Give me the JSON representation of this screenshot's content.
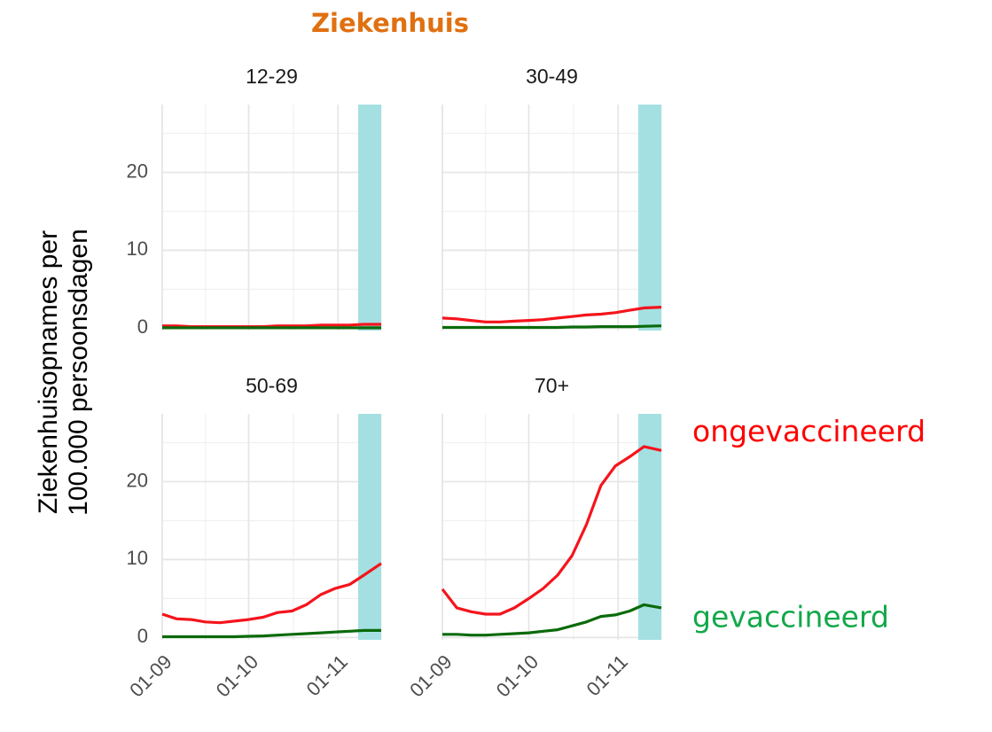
{
  "title": "Ziekenhuis",
  "y_label": [
    "Ziekenhuisopnames per",
    "100.000 persoonsdagen"
  ],
  "chart_data": [
    {
      "type": "line",
      "title": "12-29",
      "x": [
        "01-09",
        "06-09",
        "11-09",
        "16-09",
        "21-09",
        "26-09",
        "01-10",
        "06-10",
        "11-10",
        "16-10",
        "21-10",
        "26-10",
        "31-10",
        "05-11",
        "10-11",
        "16-11"
      ],
      "xlim": [
        "01-09",
        "16-11"
      ],
      "xticks": [
        "01-09",
        "01-10",
        "01-11"
      ],
      "ylim": [
        -0.3,
        28.7
      ],
      "yticks": [
        0,
        10,
        20
      ],
      "grid": true,
      "highlight": [
        "08-11",
        "16-11"
      ],
      "highlight_color": "#a4e0e2",
      "series": [
        {
          "color": "#f5141c",
          "values": [
            0.3,
            0.3,
            0.2,
            0.2,
            0.2,
            0.2,
            0.2,
            0.2,
            0.3,
            0.3,
            0.3,
            0.4,
            0.4,
            0.4,
            0.5,
            0.5
          ]
        },
        {
          "color": "#0b6a0b",
          "values": [
            0.05,
            0.05,
            0.05,
            0.05,
            0.05,
            0.05,
            0.05,
            0.05,
            0.05,
            0.05,
            0.05,
            0.05,
            0.05,
            0.05,
            0.05,
            0.05
          ]
        }
      ]
    },
    {
      "type": "line",
      "title": "30-49",
      "x": [
        "01-09",
        "06-09",
        "11-09",
        "16-09",
        "21-09",
        "26-09",
        "01-10",
        "06-10",
        "11-10",
        "16-10",
        "21-10",
        "26-10",
        "31-10",
        "05-11",
        "10-11",
        "16-11"
      ],
      "xlim": [
        "01-09",
        "16-11"
      ],
      "xticks": [
        "01-09",
        "01-10",
        "01-11"
      ],
      "ylim": [
        -0.3,
        28.7
      ],
      "yticks": [
        0,
        10,
        20
      ],
      "grid": true,
      "highlight": [
        "08-11",
        "16-11"
      ],
      "highlight_color": "#a4e0e2",
      "series": [
        {
          "color": "#f5141c",
          "values": [
            1.3,
            1.2,
            1.0,
            0.8,
            0.8,
            0.9,
            1.0,
            1.1,
            1.3,
            1.5,
            1.7,
            1.8,
            2.0,
            2.3,
            2.6,
            2.7
          ]
        },
        {
          "color": "#0b6a0b",
          "values": [
            0.1,
            0.1,
            0.1,
            0.1,
            0.1,
            0.1,
            0.1,
            0.1,
            0.1,
            0.15,
            0.15,
            0.2,
            0.2,
            0.2,
            0.25,
            0.3
          ]
        }
      ]
    },
    {
      "type": "line",
      "title": "50-69",
      "x": [
        "01-09",
        "06-09",
        "11-09",
        "16-09",
        "21-09",
        "26-09",
        "01-10",
        "06-10",
        "11-10",
        "16-10",
        "21-10",
        "26-10",
        "31-10",
        "05-11",
        "10-11",
        "16-11"
      ],
      "xlim": [
        "01-09",
        "16-11"
      ],
      "xticks": [
        "01-09",
        "01-10",
        "01-11"
      ],
      "ylim": [
        -0.3,
        28.7
      ],
      "yticks": [
        0,
        10,
        20
      ],
      "grid": true,
      "highlight": [
        "08-11",
        "16-11"
      ],
      "highlight_color": "#a4e0e2",
      "series": [
        {
          "color": "#f5141c",
          "values": [
            3.0,
            2.4,
            2.3,
            2.0,
            1.9,
            2.1,
            2.3,
            2.6,
            3.2,
            3.4,
            4.2,
            5.5,
            6.3,
            6.8,
            8.0,
            9.5
          ]
        },
        {
          "color": "#0b6a0b",
          "values": [
            0.1,
            0.1,
            0.1,
            0.1,
            0.1,
            0.1,
            0.15,
            0.2,
            0.3,
            0.4,
            0.5,
            0.6,
            0.7,
            0.8,
            0.9,
            0.9
          ]
        }
      ]
    },
    {
      "type": "line",
      "title": "70+",
      "x": [
        "01-09",
        "06-09",
        "11-09",
        "16-09",
        "21-09",
        "26-09",
        "01-10",
        "06-10",
        "11-10",
        "16-10",
        "21-10",
        "26-10",
        "31-10",
        "05-11",
        "10-11",
        "16-11"
      ],
      "xlim": [
        "01-09",
        "16-11"
      ],
      "xticks": [
        "01-09",
        "01-10",
        "01-11"
      ],
      "ylim": [
        -0.3,
        28.7
      ],
      "yticks": [
        0,
        10,
        20
      ],
      "grid": true,
      "highlight": [
        "08-11",
        "16-11"
      ],
      "highlight_color": "#a4e0e2",
      "series": [
        {
          "name": "ongevaccineerd",
          "color": "#f5141c",
          "label_color": "#ff0000",
          "values": [
            6.2,
            3.8,
            3.3,
            3.0,
            3.0,
            3.8,
            5.0,
            6.3,
            8.0,
            10.5,
            14.5,
            19.5,
            22.0,
            23.2,
            24.5,
            24.0
          ]
        },
        {
          "name": "gevaccineerd",
          "color": "#0b6a0b",
          "label_color": "#12a84a",
          "values": [
            0.4,
            0.4,
            0.3,
            0.3,
            0.4,
            0.5,
            0.6,
            0.8,
            1.0,
            1.5,
            2.0,
            2.7,
            2.9,
            3.4,
            4.2,
            3.8
          ]
        }
      ]
    }
  ]
}
